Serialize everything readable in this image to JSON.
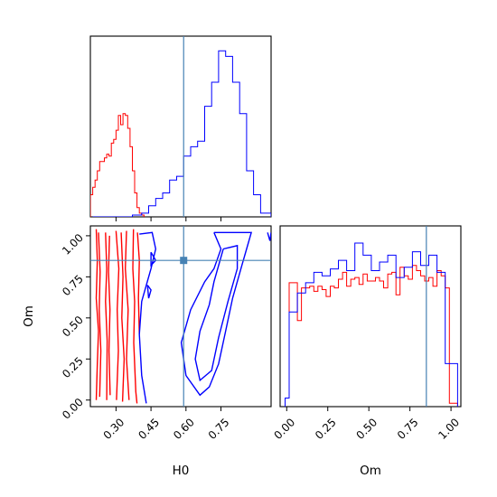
{
  "chart_data": {
    "type": "corner",
    "parameters": [
      "H0",
      "Om"
    ],
    "xlabels": {
      "H0": "H0",
      "Om": "Om"
    },
    "ylabel": "Om",
    "ranges": {
      "H0": [
        0.19,
        0.965
      ],
      "Om": [
        -0.04,
        1.06
      ]
    },
    "ticks": {
      "H0": [
        0.3,
        0.45,
        0.6,
        0.75
      ],
      "Om": [
        0.0,
        0.25,
        0.5,
        0.75,
        1.0
      ]
    },
    "tick_labels": {
      "H0": [
        "0.30",
        "0.45",
        "0.60",
        "0.75"
      ],
      "Om": [
        "0.00",
        "0.25",
        "0.50",
        "0.75",
        "1.00"
      ]
    },
    "truths": {
      "H0": 0.59,
      "Om": 0.85
    },
    "colors": {
      "series_a": "#ff0000",
      "series_b": "#0000ff",
      "truth": "#4682b4"
    },
    "series": [
      {
        "color": "#ff0000",
        "hist_H0": {
          "edges": [
            0.19,
            0.2,
            0.21,
            0.22,
            0.23,
            0.24,
            0.25,
            0.26,
            0.27,
            0.28,
            0.29,
            0.3,
            0.31,
            0.32,
            0.33,
            0.34,
            0.35,
            0.36,
            0.37,
            0.38,
            0.39,
            0.4,
            0.41,
            0.42
          ],
          "counts": [
            0.12,
            0.16,
            0.2,
            0.25,
            0.3,
            0.3,
            0.32,
            0.34,
            0.33,
            0.4,
            0.42,
            0.47,
            0.55,
            0.5,
            0.56,
            0.55,
            0.48,
            0.38,
            0.25,
            0.13,
            0.05,
            0.02,
            0.01
          ]
        },
        "hist_Om": {
          "edges": [
            -0.01,
            0.015,
            0.04,
            0.065,
            0.09,
            0.115,
            0.14,
            0.165,
            0.19,
            0.215,
            0.24,
            0.265,
            0.29,
            0.315,
            0.34,
            0.365,
            0.39,
            0.415,
            0.44,
            0.465,
            0.49,
            0.515,
            0.54,
            0.565,
            0.59,
            0.615,
            0.64,
            0.665,
            0.69,
            0.715,
            0.74,
            0.765,
            0.79,
            0.815,
            0.84,
            0.865,
            0.89,
            0.915,
            0.94,
            0.965,
            0.99,
            1.015,
            1.04
          ],
          "counts": [
            0.05,
            0.72,
            0.72,
            0.5,
            0.69,
            0.69,
            0.7,
            0.67,
            0.7,
            0.68,
            0.64,
            0.7,
            0.69,
            0.74,
            0.78,
            0.7,
            0.74,
            0.75,
            0.71,
            0.77,
            0.73,
            0.73,
            0.75,
            0.73,
            0.69,
            0.77,
            0.78,
            0.65,
            0.81,
            0.76,
            0.74,
            0.82,
            0.79,
            0.76,
            0.73,
            0.75,
            0.7,
            0.79,
            0.76,
            0.69,
            0.02,
            0.02
          ]
        },
        "contours": [
          [
            [
              0.215,
              1.04
            ],
            [
              0.22,
              0.85
            ],
            [
              0.215,
              0.62
            ],
            [
              0.225,
              0.42
            ],
            [
              0.22,
              0.22
            ],
            [
              0.215,
              0.0
            ]
          ],
          [
            [
              0.225,
              1.02
            ],
            [
              0.232,
              0.78
            ],
            [
              0.228,
              0.55
            ],
            [
              0.235,
              0.3
            ],
            [
              0.23,
              0.02
            ]
          ],
          [
            [
              0.255,
              1.02
            ],
            [
              0.26,
              0.8
            ],
            [
              0.255,
              0.6
            ],
            [
              0.262,
              0.36
            ],
            [
              0.26,
              0.0
            ]
          ],
          [
            [
              0.272,
              1.0
            ],
            [
              0.268,
              0.78
            ],
            [
              0.274,
              0.55
            ],
            [
              0.27,
              0.3
            ],
            [
              0.275,
              0.03
            ]
          ],
          [
            [
              0.3,
              1.03
            ],
            [
              0.312,
              0.8
            ],
            [
              0.305,
              0.55
            ],
            [
              0.31,
              0.3
            ],
            [
              0.302,
              0.0
            ]
          ],
          [
            [
              0.322,
              1.02
            ],
            [
              0.33,
              0.75
            ],
            [
              0.325,
              0.5
            ],
            [
              0.335,
              0.25
            ],
            [
              0.328,
              -0.01
            ]
          ],
          [
            [
              0.345,
              1.03
            ],
            [
              0.34,
              0.8
            ],
            [
              0.352,
              0.55
            ],
            [
              0.345,
              0.25
            ],
            [
              0.356,
              0.0
            ]
          ],
          [
            [
              0.375,
              1.04
            ],
            [
              0.372,
              0.8
            ],
            [
              0.38,
              0.6
            ],
            [
              0.376,
              0.35
            ],
            [
              0.385,
              0.05
            ],
            [
              0.39,
              -0.02
            ]
          ],
          [
            [
              0.392,
              1.02
            ],
            [
              0.4,
              0.85
            ],
            [
              0.396,
              0.62
            ],
            [
              0.4,
              0.4
            ]
          ]
        ]
      },
      {
        "color": "#0000ff",
        "hist_H0": {
          "edges": [
            0.2,
            0.25,
            0.29,
            0.33,
            0.37,
            0.41,
            0.44,
            0.47,
            0.5,
            0.53,
            0.56,
            0.59,
            0.62,
            0.65,
            0.68,
            0.71,
            0.74,
            0.77,
            0.8,
            0.83,
            0.86,
            0.89,
            0.92,
            0.965
          ],
          "counts": [
            0.0,
            0.0,
            0.0,
            0.0,
            0.01,
            0.02,
            0.06,
            0.1,
            0.13,
            0.2,
            0.22,
            0.33,
            0.38,
            0.41,
            0.6,
            0.73,
            0.9,
            0.87,
            0.73,
            0.56,
            0.25,
            0.12,
            0.02
          ]
        },
        "hist_Om": {
          "edges": [
            -0.01,
            0.015,
            0.04,
            0.065,
            0.09,
            0.115,
            0.14,
            0.165,
            0.19,
            0.215,
            0.24,
            0.265,
            0.29,
            0.315,
            0.34,
            0.365,
            0.39,
            0.415,
            0.44,
            0.465,
            0.49,
            0.515,
            0.54,
            0.565,
            0.59,
            0.615,
            0.64,
            0.665,
            0.69,
            0.715,
            0.74,
            0.765,
            0.79,
            0.815,
            0.84,
            0.865,
            0.89,
            0.915,
            0.94,
            0.965,
            0.99,
            1.015,
            1.04
          ],
          "counts": [
            0.05,
            0.55,
            0.55,
            0.66,
            0.66,
            0.72,
            0.72,
            0.78,
            0.78,
            0.76,
            0.76,
            0.8,
            0.8,
            0.85,
            0.85,
            0.79,
            0.79,
            0.95,
            0.95,
            0.88,
            0.88,
            0.79,
            0.79,
            0.84,
            0.84,
            0.88,
            0.88,
            0.75,
            0.75,
            0.81,
            0.81,
            0.9,
            0.9,
            0.82,
            0.82,
            0.88,
            0.88,
            0.78,
            0.78,
            0.25,
            0.25,
            0.25
          ]
        },
        "contours": [
          [
            [
              0.4,
              1.01
            ],
            [
              0.455,
              1.02
            ],
            [
              0.47,
              0.92
            ],
            [
              0.45,
              0.8
            ],
            [
              0.41,
              0.6
            ],
            [
              0.4,
              0.4
            ],
            [
              0.41,
              0.15
            ],
            [
              0.43,
              -0.02
            ]
          ],
          [
            [
              0.45,
              0.9
            ],
            [
              0.47,
              0.85
            ],
            [
              0.45,
              0.82
            ],
            [
              0.45,
              0.9
            ]
          ],
          [
            [
              0.435,
              0.7
            ],
            [
              0.45,
              0.67
            ],
            [
              0.44,
              0.62
            ],
            [
              0.435,
              0.7
            ]
          ],
          [
            [
              0.72,
              1.02
            ],
            [
              0.88,
              1.02
            ],
            [
              0.86,
              0.92
            ],
            [
              0.84,
              0.82
            ],
            [
              0.8,
              0.62
            ],
            [
              0.77,
              0.42
            ],
            [
              0.74,
              0.22
            ],
            [
              0.7,
              0.08
            ],
            [
              0.66,
              0.03
            ],
            [
              0.6,
              0.15
            ],
            [
              0.58,
              0.35
            ],
            [
              0.62,
              0.55
            ],
            [
              0.68,
              0.72
            ],
            [
              0.72,
              0.8
            ],
            [
              0.75,
              0.92
            ],
            [
              0.72,
              1.02
            ]
          ],
          [
            [
              0.76,
              0.92
            ],
            [
              0.82,
              0.94
            ],
            [
              0.82,
              0.8
            ],
            [
              0.78,
              0.6
            ],
            [
              0.74,
              0.38
            ],
            [
              0.71,
              0.18
            ],
            [
              0.66,
              0.12
            ],
            [
              0.64,
              0.25
            ],
            [
              0.66,
              0.42
            ],
            [
              0.7,
              0.58
            ],
            [
              0.72,
              0.72
            ],
            [
              0.76,
              0.92
            ]
          ],
          [
            [
              0.95,
              1.02
            ],
            [
              0.96,
              0.97
            ],
            [
              0.965,
              1.02
            ]
          ]
        ]
      }
    ]
  }
}
